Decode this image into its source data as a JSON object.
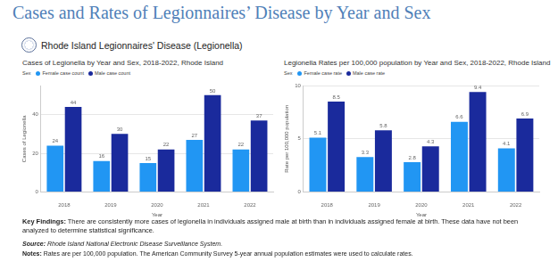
{
  "page_title": "Cases and Rates of Legionnaires’ Disease by Year and Sex",
  "dashboard_title": "Rhode Island Legionnaires' Disease (Legionella)",
  "chart_data": [
    {
      "type": "bar",
      "title": "Cases of Legionella by Year and Sex, 2018-2022, Rhode Island",
      "legend_title": "Sex",
      "legend": "top-left",
      "x_label": "Year",
      "y_label": "Cases of Legionella",
      "categories": [
        "2018",
        "2019",
        "2020",
        "2021",
        "2022"
      ],
      "series": [
        {
          "name": "Female case count",
          "color": "#2196f3",
          "values": [
            24,
            16,
            15,
            27,
            22
          ]
        },
        {
          "name": "Male case count",
          "color": "#1a2a9c",
          "values": [
            44,
            30,
            22,
            50,
            37
          ]
        }
      ],
      "ylim": [
        0,
        55
      ],
      "yticks": [
        0,
        20,
        40
      ],
      "grid": true,
      "data_labels": true
    },
    {
      "type": "bar",
      "title": "Legionella Rates per 100,000 population by Year and Sex, 2018-2022, Rhode Island",
      "legend_title": "Sex",
      "legend": "top-left",
      "x_label": "Year",
      "y_label": "Rate per 100,000 population",
      "categories": [
        "2018",
        "2019",
        "2020",
        "2021",
        "2022"
      ],
      "series": [
        {
          "name": "Female case rate",
          "color": "#2196f3",
          "values": [
            5.1,
            3.3,
            2.8,
            6.6,
            4.1
          ]
        },
        {
          "name": "Male case rate",
          "color": "#1a2a9c",
          "values": [
            8.5,
            5.8,
            4.3,
            9.4,
            6.9
          ]
        }
      ],
      "ylim": [
        0,
        10
      ],
      "yticks": [
        0,
        5,
        10
      ],
      "grid": true,
      "data_labels": true
    }
  ],
  "key_findings": {
    "label": "Key Findings:",
    "text": "There are consistently more cases of legionella in individuals assigned male at birth than in individuals assigned female at birth. These data have not been analyzed to determine statistical significance."
  },
  "source": {
    "label": "Source:",
    "text": "Rhode Island National Electronic Disease Surveillance System."
  },
  "notes": {
    "label": "Notes:",
    "text": "Rates are per 100,000 population. The American Community Survey 5-year annual population estimates were used to calculate rates."
  }
}
